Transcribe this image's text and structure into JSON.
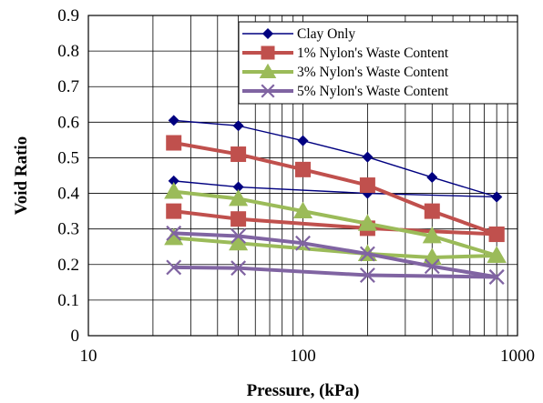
{
  "chart_data": {
    "type": "line",
    "title": "",
    "xlabel": "Pressure, (kPa)",
    "ylabel": "Void Ratio",
    "x_scale": "log",
    "xlim": [
      10,
      1000
    ],
    "ylim": [
      0,
      0.9
    ],
    "x_ticks": [
      "10",
      "100",
      "1000"
    ],
    "y_ticks": [
      "0",
      "0.1",
      "0.2",
      "0.3",
      "0.4",
      "0.5",
      "0.6",
      "0.7",
      "0.8",
      "0.9"
    ],
    "grid": true,
    "legend_position": "top-right",
    "series": [
      {
        "name": "Clay Only",
        "color": "#000080",
        "marker": "diamond",
        "loading": {
          "x": [
            25,
            50,
            100,
            200,
            400,
            800
          ],
          "y": [
            0.605,
            0.59,
            0.548,
            0.502,
            0.445,
            0.39
          ]
        },
        "unloading": {
          "x": [
            800,
            200,
            50,
            25
          ],
          "y": [
            0.39,
            0.4,
            0.418,
            0.435
          ]
        }
      },
      {
        "name": "1% Nylon's Waste Content",
        "color": "#C0504D",
        "marker": "square",
        "loading": {
          "x": [
            25,
            50,
            100,
            200,
            400,
            800
          ],
          "y": [
            0.542,
            0.51,
            0.467,
            0.423,
            0.35,
            0.285
          ]
        },
        "unloading": {
          "x": [
            800,
            200,
            50,
            25
          ],
          "y": [
            0.285,
            0.302,
            0.328,
            0.35
          ]
        }
      },
      {
        "name": "3% Nylon's Waste Content",
        "color": "#9BBB59",
        "marker": "triangle",
        "loading": {
          "x": [
            25,
            50,
            100,
            200,
            400,
            800
          ],
          "y": [
            0.405,
            0.385,
            0.35,
            0.315,
            0.28,
            0.225
          ]
        },
        "unloading": {
          "x": [
            800,
            400,
            200,
            50,
            25
          ],
          "y": [
            0.225,
            0.22,
            0.23,
            0.26,
            0.275
          ]
        }
      },
      {
        "name": "5% Nylon's Waste Content",
        "color": "#8064A2",
        "marker": "x",
        "loading": {
          "x": [
            25,
            50,
            100,
            200,
            400,
            800
          ],
          "y": [
            0.288,
            0.28,
            0.26,
            0.23,
            0.195,
            0.165
          ]
        },
        "unloading": {
          "x": [
            800,
            200,
            50,
            25
          ],
          "y": [
            0.165,
            0.17,
            0.19,
            0.192
          ]
        }
      }
    ]
  }
}
